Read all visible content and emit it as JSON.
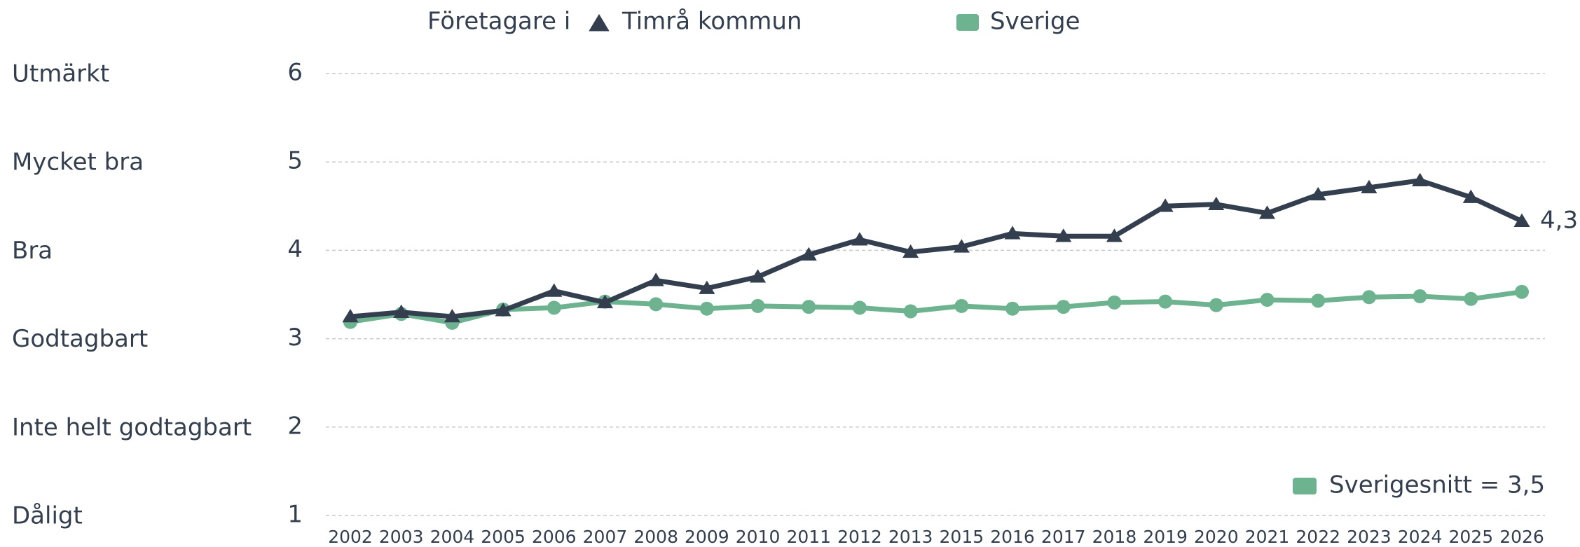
{
  "chart_data": {
    "type": "line",
    "legend_title": "Företagare i",
    "categories": [
      "2002",
      "2003",
      "2004",
      "2005",
      "2006",
      "2007",
      "2008",
      "2009",
      "2010",
      "2011",
      "2012",
      "2013",
      "2015",
      "2016",
      "2017",
      "2018",
      "2019",
      "2020",
      "2021",
      "2022",
      "2023",
      "2024",
      "2025",
      "2026"
    ],
    "series": [
      {
        "name": "Timrå kommun",
        "color": "#333f4f",
        "marker": "triangle",
        "values": [
          3.25,
          3.3,
          3.25,
          3.32,
          3.54,
          3.41,
          3.66,
          3.57,
          3.7,
          3.95,
          4.12,
          3.98,
          4.04,
          4.19,
          4.16,
          4.16,
          4.5,
          4.52,
          4.42,
          4.63,
          4.71,
          4.79,
          4.6,
          4.33
        ],
        "value_labels": [
          null,
          null,
          null,
          null,
          null,
          null,
          null,
          null,
          null,
          null,
          null,
          null,
          null,
          null,
          null,
          null,
          null,
          null,
          null,
          null,
          null,
          null,
          null,
          "4,3"
        ]
      },
      {
        "name": "Sverige",
        "color": "#6db390",
        "marker": "circle",
        "values": [
          3.19,
          3.28,
          3.18,
          3.33,
          3.35,
          3.42,
          3.39,
          3.34,
          3.37,
          3.36,
          3.35,
          3.31,
          3.37,
          3.34,
          3.36,
          3.41,
          3.42,
          3.38,
          3.44,
          3.43,
          3.47,
          3.48,
          3.45,
          3.53
        ]
      }
    ],
    "ylim": [
      1,
      6
    ],
    "yticks": [
      1,
      2,
      3,
      4,
      5,
      6
    ],
    "rating_labels": [
      "Dåligt",
      "Inte helt godtagbart",
      "Godtagbart",
      "Bra",
      "Mycket bra",
      "Utmärkt"
    ],
    "annotation": "Sverigesnitt = 3,5",
    "grid": true
  }
}
